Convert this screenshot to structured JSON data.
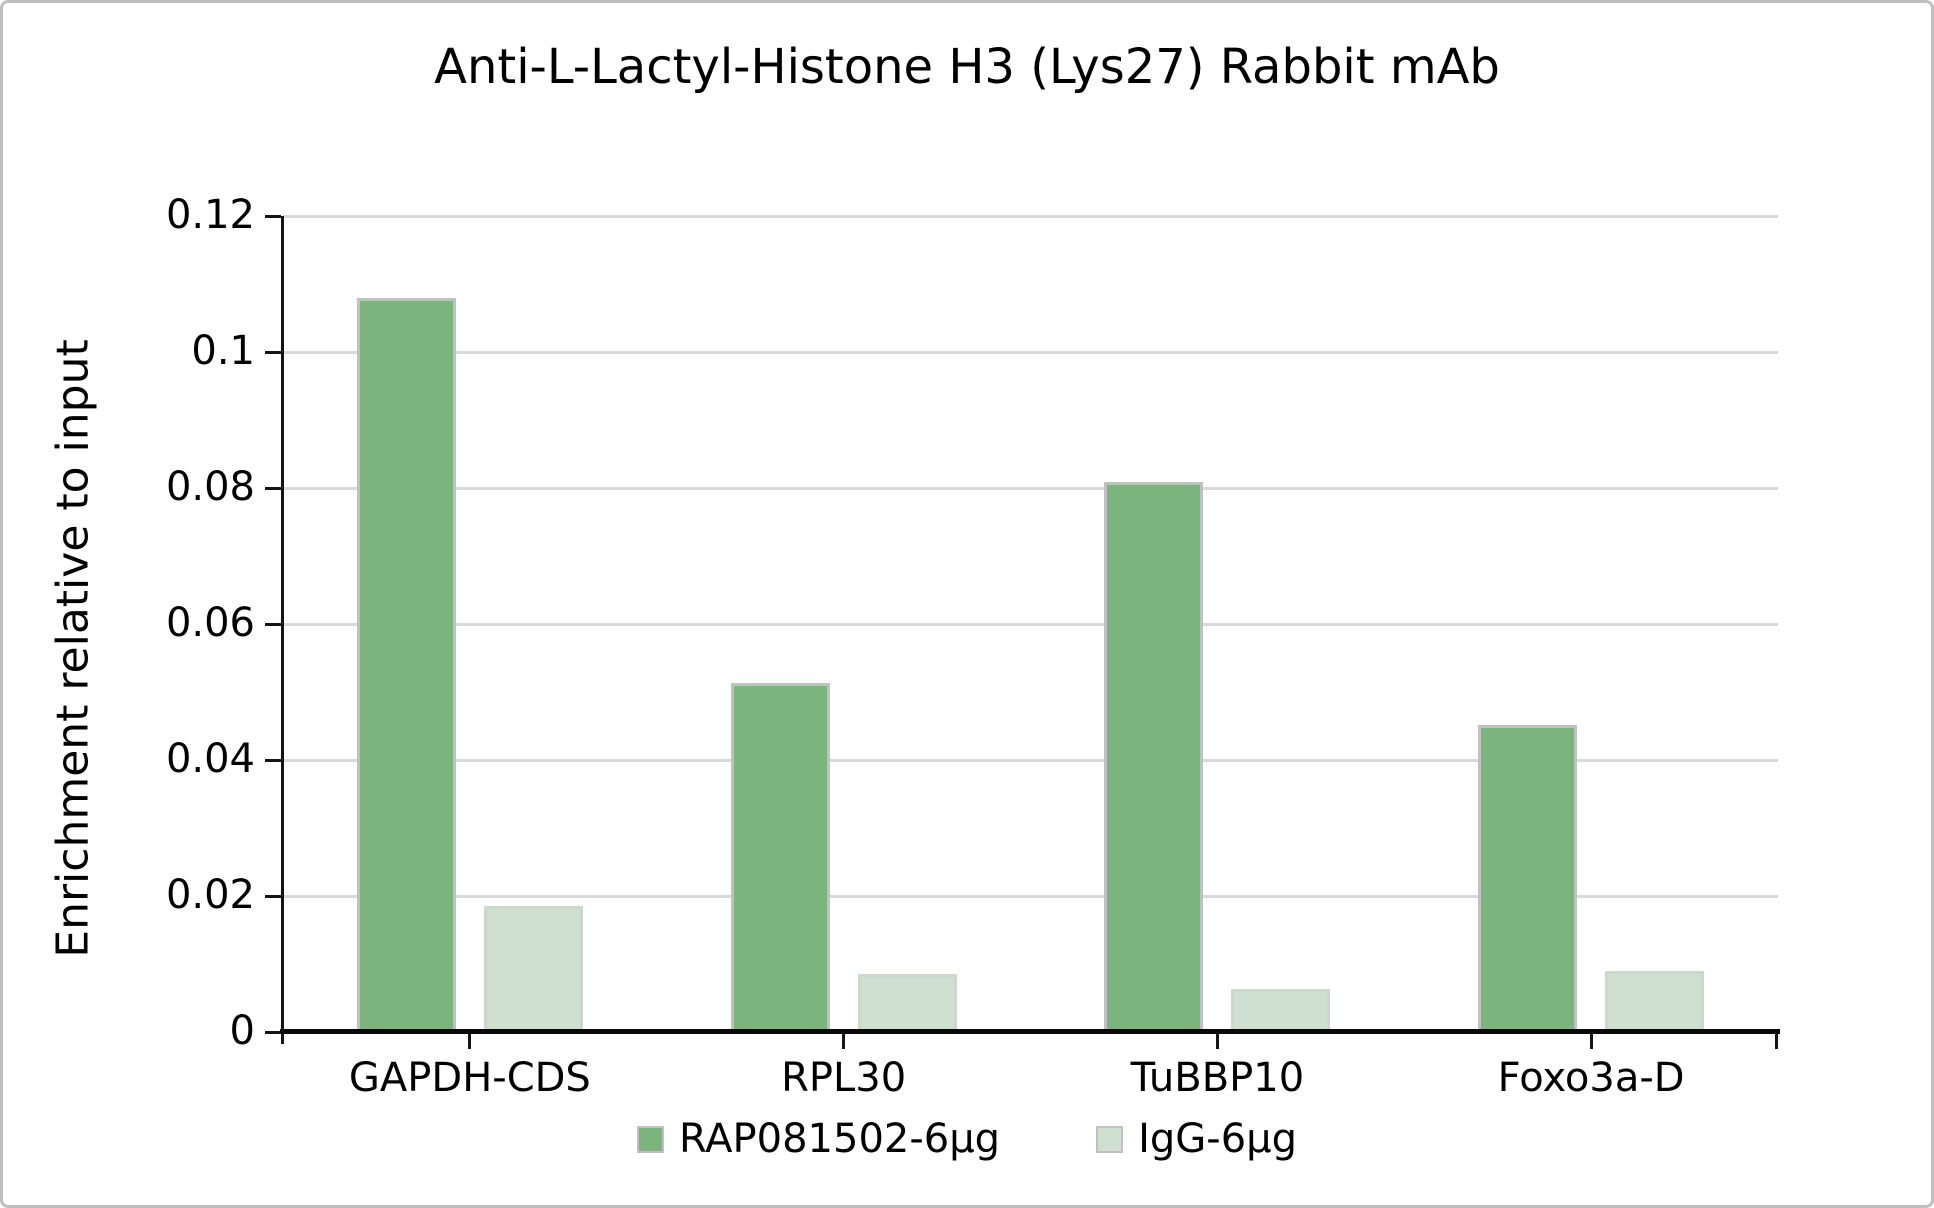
{
  "chart_data": {
    "type": "bar",
    "title": "Anti-L-Lactyl-Histone H3 (Lys27) Rabbit mAb",
    "xlabel": "",
    "ylabel": "Enrichment relative to input",
    "categories": [
      "GAPDH-CDS",
      "RPL30",
      "TuBBP10",
      "Foxo3a-D"
    ],
    "series": [
      {
        "name": "RAP081502-6µg",
        "color": "#7cb47d",
        "border_color": "#c1c1c1",
        "values": [
          0.108,
          0.0513,
          0.0809,
          0.0451
        ]
      },
      {
        "name": "IgG-6µg",
        "color": "#cfdfd0",
        "border_color": "#cdd7cd",
        "values": [
          0.0185,
          0.0085,
          0.0063,
          0.009
        ]
      }
    ],
    "ylim": [
      0,
      0.12
    ],
    "ytick_step": 0.02,
    "ytick_labels": [
      "0",
      "0.02",
      "0.04",
      "0.06",
      "0.08",
      "0.1",
      "0.12"
    ],
    "grid": true,
    "grid_color": "#d9d9d9",
    "axis_color": "#000000",
    "text_color": "#000000",
    "frame_border_color": "#bfbfbf",
    "legend_position": "bottom"
  }
}
